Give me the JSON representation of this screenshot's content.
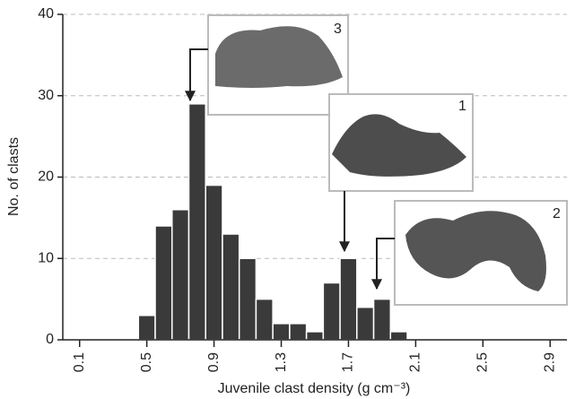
{
  "chart_data": {
    "type": "histogram",
    "xlabel": "Juvenile clast density (g cm⁻³)",
    "ylabel": "No. of clasts",
    "bins": [
      0.45,
      0.55,
      0.65,
      0.75,
      0.85,
      0.95,
      1.05,
      1.15,
      1.25,
      1.35,
      1.45,
      1.55,
      1.65,
      1.75,
      1.85,
      1.95,
      2.05
    ],
    "values": [
      3,
      14,
      16,
      29,
      19,
      13,
      10,
      5,
      2,
      2,
      1,
      7,
      10,
      4,
      5,
      1
    ],
    "color": "#3a3a3a",
    "xlim": [
      0,
      3.0
    ],
    "xticks": [
      0.1,
      0.5,
      0.9,
      1.3,
      1.7,
      2.1,
      2.5,
      2.9
    ],
    "ylim": [
      0,
      40
    ],
    "yticks": [
      0,
      10,
      20,
      30,
      40
    ],
    "grid": true,
    "annotations": [
      "3",
      "1",
      "2"
    ]
  }
}
